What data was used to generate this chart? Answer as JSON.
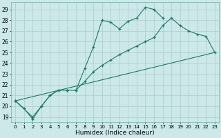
{
  "bg_color": "#cce8e8",
  "grid_color": "#aacccc",
  "line_color": "#1a7a6a",
  "xlabel": "Humidex (Indice chaleur)",
  "xlim": [
    -0.5,
    23.5
  ],
  "ylim": [
    18.5,
    29.7
  ],
  "yticks": [
    19,
    20,
    21,
    22,
    23,
    24,
    25,
    26,
    27,
    28,
    29
  ],
  "xticks": [
    0,
    1,
    2,
    3,
    4,
    5,
    6,
    7,
    8,
    9,
    10,
    11,
    12,
    13,
    14,
    15,
    16,
    17,
    18,
    19,
    20,
    21,
    22,
    23
  ],
  "line1_x": [
    0,
    1,
    2,
    3,
    4,
    5,
    6,
    7,
    8,
    9,
    10,
    11,
    12,
    13,
    14,
    15,
    16,
    17
  ],
  "line1_y": [
    20.5,
    19.8,
    18.8,
    20.0,
    21.0,
    21.5,
    21.5,
    21.5,
    23.5,
    25.5,
    28.0,
    27.8,
    27.2,
    27.9,
    28.2,
    29.2,
    29.0,
    28.2
  ],
  "line2_x": [
    0,
    2,
    3,
    4,
    5,
    6,
    7,
    8,
    9,
    10,
    11,
    12,
    13,
    14,
    15,
    16,
    17,
    18,
    19,
    20,
    21,
    22,
    23
  ],
  "line2_y": [
    20.5,
    19.0,
    20.0,
    21.0,
    21.5,
    21.5,
    21.5,
    22.3,
    23.2,
    23.8,
    24.3,
    24.8,
    25.2,
    25.6,
    26.0,
    26.4,
    27.5,
    28.2,
    27.5,
    27.0,
    26.7,
    26.5,
    25.0
  ],
  "line3_x": [
    0,
    23
  ],
  "line3_y": [
    20.5,
    25.0
  ]
}
